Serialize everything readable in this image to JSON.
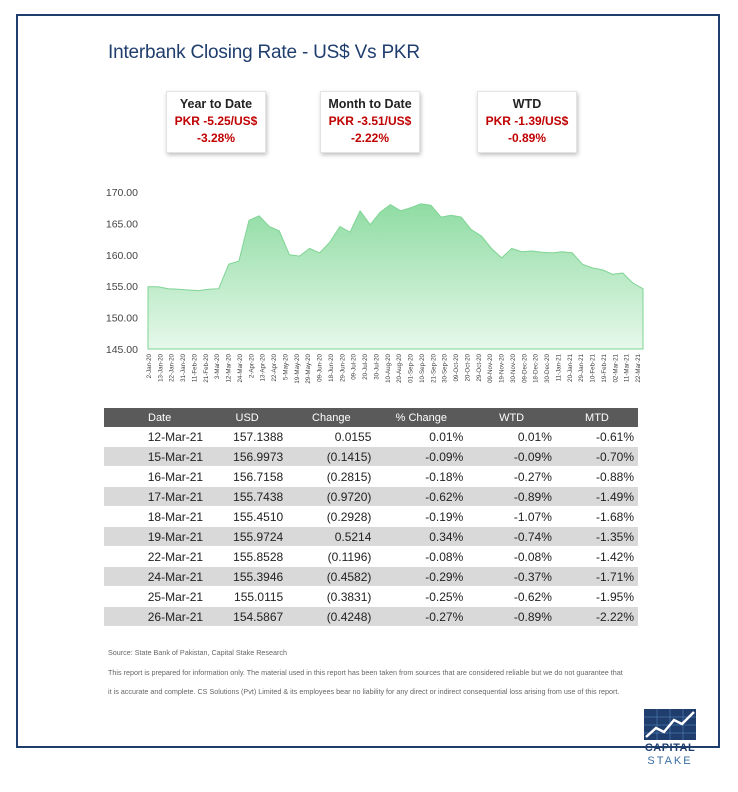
{
  "header": {
    "title": "Interbank Closing Rate - US$ Vs PKR"
  },
  "kpis": [
    {
      "label": "Year to Date",
      "value": "PKR -5.25/US$",
      "pct": "-3.28%"
    },
    {
      "label": "Month to Date",
      "value": "PKR -3.51/US$",
      "pct": "-2.22%"
    },
    {
      "label": "WTD",
      "value": "PKR -1.39/US$",
      "pct": "-0.89%"
    }
  ],
  "chart_data": {
    "type": "area",
    "ylim": [
      145,
      170
    ],
    "yticks": [
      "145.00",
      "150.00",
      "155.00",
      "160.00",
      "165.00",
      "170.00"
    ],
    "xticks": [
      "2-Jan-20",
      "13-Jan-20",
      "22-Jan-20",
      "31-Jan-20",
      "11-Feb-20",
      "21-Feb-20",
      "3-Mar-20",
      "12-Mar-20",
      "24-Mar-20",
      "2-Apr-20",
      "13-Apr-20",
      "22-Apr-20",
      "5-May-20",
      "19-May-20",
      "29-May-20",
      "09-Jun-20",
      "18-Jun-20",
      "29-Jun-20",
      "09-Jul-20",
      "20-Jul-20",
      "30-Jul-20",
      "10-Aug-20",
      "20-Aug-20",
      "01-Sep-20",
      "10-Sep-20",
      "21-Sep-20",
      "30-Sep-20",
      "09-Oct-20",
      "20-Oct-20",
      "29-Oct-20",
      "09-Nov-20",
      "19-Nov-20",
      "30-Nov-20",
      "09-Dec-20",
      "18-Dec-20",
      "30-Dec-20",
      "11-Jan-21",
      "20-Jan-21",
      "29-Jan-21",
      "10-Feb-21",
      "19-Feb-21",
      "02-Mar-21",
      "11-Mar-21",
      "22-Mar-21"
    ],
    "values": [
      154.9,
      154.9,
      154.6,
      154.5,
      154.4,
      154.3,
      154.5,
      154.6,
      158.5,
      159.0,
      165.5,
      166.2,
      164.5,
      163.8,
      160.0,
      159.8,
      161.0,
      160.3,
      162.0,
      164.5,
      163.6,
      167.0,
      164.8,
      166.8,
      168.0,
      167.0,
      167.5,
      168.1,
      167.9,
      166.0,
      166.3,
      166.0,
      164.0,
      163.0,
      161.0,
      159.5,
      161.0,
      160.5,
      160.6,
      160.4,
      160.3,
      160.5,
      160.3,
      158.5,
      157.9,
      157.6,
      156.9,
      157.1,
      155.5,
      154.6
    ],
    "fill_color": "#a8e6b8",
    "grid": false
  },
  "table": {
    "headers": [
      "Date",
      "USD",
      "Change",
      "% Change",
      "WTD",
      "MTD"
    ],
    "rows": [
      {
        "date": "12-Mar-21",
        "usd": "157.1388",
        "change": "0.0155",
        "pct": "0.01%",
        "wtd": "0.01%",
        "mtd": "-0.61%"
      },
      {
        "date": "15-Mar-21",
        "usd": "156.9973",
        "change": "(0.1415)",
        "pct": "-0.09%",
        "wtd": "-0.09%",
        "mtd": "-0.70%"
      },
      {
        "date": "16-Mar-21",
        "usd": "156.7158",
        "change": "(0.2815)",
        "pct": "-0.18%",
        "wtd": "-0.27%",
        "mtd": "-0.88%"
      },
      {
        "date": "17-Mar-21",
        "usd": "155.7438",
        "change": "(0.9720)",
        "pct": "-0.62%",
        "wtd": "-0.89%",
        "mtd": "-1.49%"
      },
      {
        "date": "18-Mar-21",
        "usd": "155.4510",
        "change": "(0.2928)",
        "pct": "-0.19%",
        "wtd": "-1.07%",
        "mtd": "-1.68%"
      },
      {
        "date": "19-Mar-21",
        "usd": "155.9724",
        "change": "0.5214",
        "pct": "0.34%",
        "wtd": "-0.74%",
        "mtd": "-1.35%"
      },
      {
        "date": "22-Mar-21",
        "usd": "155.8528",
        "change": "(0.1196)",
        "pct": "-0.08%",
        "wtd": "-0.08%",
        "mtd": "-1.42%"
      },
      {
        "date": "24-Mar-21",
        "usd": "155.3946",
        "change": "(0.4582)",
        "pct": "-0.29%",
        "wtd": "-0.37%",
        "mtd": "-1.71%"
      },
      {
        "date": "25-Mar-21",
        "usd": "155.0115",
        "change": "(0.3831)",
        "pct": "-0.25%",
        "wtd": "-0.62%",
        "mtd": "-1.95%"
      },
      {
        "date": "26-Mar-21",
        "usd": "154.5867",
        "change": "(0.4248)",
        "pct": "-0.27%",
        "wtd": "-0.89%",
        "mtd": "-2.22%"
      }
    ]
  },
  "footer": {
    "source": "Source: State Bank of Pakistan, Capital Stake Research",
    "disclaimer_line1": "This report is prepared for information only. The material used in this report has been taken from sources that are considered reliable but we do not guarantee that",
    "disclaimer_line2": "it is accurate and complete. CS Solutions (Pvt) Limited & its employees bear no liability for any direct or indirect consequential loss arising from use of this report."
  },
  "logo": {
    "line1": "CAPITAL",
    "line2": "STAKE",
    "icon": "rising-chart-logo-icon"
  },
  "colors": {
    "navy": "#1f3e6e",
    "positive": "#1e9b47",
    "negative": "#c00000",
    "header_bg": "#5a5a5a",
    "alt_row": "#d9d9d9"
  }
}
